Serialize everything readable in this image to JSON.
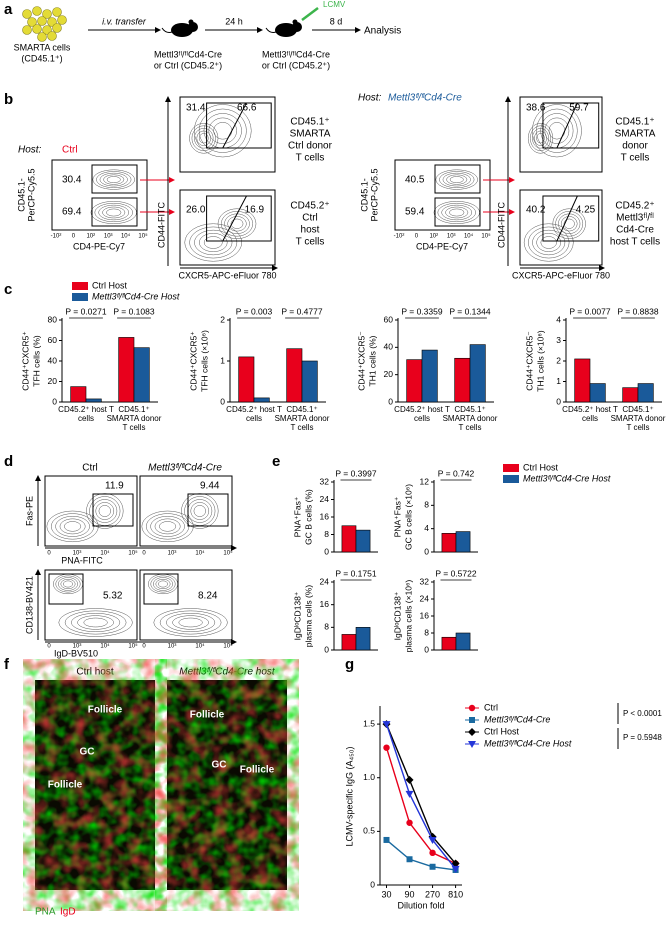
{
  "panels": {
    "a": {
      "label": "a",
      "cells": [
        "SMARTA cells",
        "(CD45.1⁺)"
      ],
      "transfer": "i.v. transfer",
      "recipient": [
        "Mettl3ᶠˡ/ᶠˡCd4-Cre",
        "or Ctrl (CD45.2⁺)"
      ],
      "wait": "24 h",
      "virus": "LCMV",
      "recipient2": [
        "Mettl3ᶠˡ/ᶠˡCd4-Cre",
        "or Ctrl (CD45.2⁺)"
      ],
      "period": "8 d",
      "endpoint": "Analysis"
    },
    "b": {
      "label": "b",
      "y_axis": [
        "CD45.1-",
        "PerCP-Cy5.5"
      ],
      "x_axis": "CD4-PE-Cy7",
      "y_axis2": "CD44-FITC",
      "x_axis2": "CXCR5-APC-eFluor 780",
      "flow_ticks": [
        "-10²",
        "0",
        "10²",
        "10³",
        "10⁴",
        "10⁵"
      ],
      "hosts": [
        {
          "prefix": "Host:",
          "name": "Ctrl",
          "gates": [
            "30.4",
            "69.4"
          ],
          "donor_gates": [
            "31.4",
            "66.6"
          ],
          "host_gates": [
            "26.0",
            "16.9"
          ],
          "donor_text": [
            "CD45.1⁺",
            "SMARTA",
            "Ctrl donor",
            "T cells"
          ],
          "host_text": [
            "CD45.2⁺",
            "Ctrl",
            "host",
            "T cells"
          ]
        },
        {
          "prefix": "Host:",
          "name": "Mettl3ᶠˡ/ᶠˡCd4-Cre",
          "gates": [
            "40.5",
            "59.4"
          ],
          "donor_gates": [
            "38.6",
            "59.7"
          ],
          "host_gates": [
            "40.2",
            "4.25"
          ],
          "donor_text": [
            "CD45.1⁺",
            "SMARTA",
            "donor",
            "T cells"
          ],
          "host_text": [
            "CD45.2⁺",
            "Mettl3ᶠˡ/ᶠˡ",
            "Cd4-Cre",
            "host T cells"
          ]
        }
      ]
    },
    "c": {
      "label": "c"
    },
    "d": {
      "label": "d",
      "titles": [
        "Ctrl",
        "Mettl3ᶠˡ/ᶠˡCd4-Cre"
      ],
      "gc_gates": [
        "11.9",
        "9.44"
      ],
      "pc_gates": [
        "5.32",
        "8.24"
      ],
      "axes": [
        "Fas-PE",
        "PNA-FITC",
        "CD138-BV421",
        "IgD-BV510"
      ],
      "flow_ticks": [
        "0",
        "10³",
        "10⁴",
        "10⁵"
      ]
    },
    "e": {
      "label": "e"
    },
    "f": {
      "label": "f",
      "titles": [
        "Ctrl host",
        "Mettl3ᶠˡ/ᶠˡCd4-Cre host"
      ],
      "regions": [
        [
          "Follicle",
          "GC",
          "Follicle"
        ],
        [
          "Follicle",
          "GC",
          "Follicle"
        ]
      ],
      "stains": [
        "PNA",
        "IgD"
      ]
    },
    "g": {
      "label": "g"
    }
  },
  "chart_data": [
    {
      "type": "bar",
      "ylabel": [
        "CD44⁺CXCR5⁺",
        "TFH cells (%)"
      ],
      "categories": [
        "CD45.2⁺ host T cells",
        "CD45.1⁺ SMARTA donor T cells"
      ],
      "series": [
        {
          "name": "Ctrl Host",
          "color": "#e8001c",
          "values": [
            15,
            63
          ]
        },
        {
          "name": "Mettl3ᶠˡ/ᶠˡCd4-Cre Host",
          "color": "#1a5a9a",
          "values": [
            3,
            53
          ]
        }
      ],
      "ylim": [
        0,
        80
      ],
      "yticks": [
        0,
        20,
        40,
        60,
        80
      ],
      "p_values": [
        "P = 0.0271",
        "P = 0.1083"
      ]
    },
    {
      "type": "bar",
      "ylabel": [
        "CD44⁺CXCR5⁺",
        "TFH cells (×10⁶)"
      ],
      "categories": [
        "CD45.2⁺ host T cells",
        "CD45.1⁺ SMARTA donor T cells"
      ],
      "series": [
        {
          "color": "#e8001c",
          "values": [
            1.1,
            1.3
          ]
        },
        {
          "color": "#1a5a9a",
          "values": [
            0.1,
            1.0
          ]
        }
      ],
      "ylim": [
        0,
        2
      ],
      "yticks": [
        0,
        1,
        2
      ],
      "p_values": [
        "P = 0.003",
        "P = 0.4777"
      ]
    },
    {
      "type": "bar",
      "ylabel": [
        "CD44⁺CXCR5⁻",
        "TH1 cells (%)"
      ],
      "categories": [
        "CD45.2⁺ host T cells",
        "CD45.1⁺ SMARTA donor T cells"
      ],
      "series": [
        {
          "color": "#e8001c",
          "values": [
            31,
            32
          ]
        },
        {
          "color": "#1a5a9a",
          "values": [
            38,
            42
          ]
        }
      ],
      "ylim": [
        0,
        60
      ],
      "yticks": [
        0,
        20,
        40,
        60
      ],
      "p_values": [
        "P = 0.3359",
        "P = 0.1344"
      ]
    },
    {
      "type": "bar",
      "ylabel": [
        "CD44⁺CXCR5⁻",
        "TH1 cells (×10⁶)"
      ],
      "categories": [
        "CD45.2⁺ host T cells",
        "CD45.1⁺ SMARTA donor T cells"
      ],
      "series": [
        {
          "color": "#e8001c",
          "values": [
            2.1,
            0.7
          ]
        },
        {
          "color": "#1a5a9a",
          "values": [
            0.9,
            0.9
          ]
        }
      ],
      "ylim": [
        0,
        4
      ],
      "yticks": [
        0,
        1,
        2,
        3,
        4
      ],
      "p_values": [
        "P = 0.0077",
        "P = 0.8838"
      ]
    },
    {
      "type": "bar",
      "ylabel": [
        "PNA⁺Fas⁺",
        "GC B cells (%)"
      ],
      "series": [
        {
          "name": "Ctrl Host",
          "color": "#e8001c",
          "values": [
            12
          ]
        },
        {
          "name": "Mettl3ᶠˡ/ᶠˡCd4-Cre Host",
          "color": "#1a5a9a",
          "values": [
            10
          ]
        }
      ],
      "ylim": [
        0,
        32
      ],
      "yticks": [
        0,
        8,
        16,
        24,
        32
      ],
      "p_values": [
        "P = 0.3997"
      ]
    },
    {
      "type": "bar",
      "ylabel": [
        "PNA⁺Fas⁺",
        "GC B cells (×10⁶)"
      ],
      "series": [
        {
          "color": "#e8001c",
          "values": [
            3.2
          ]
        },
        {
          "color": "#1a5a9a",
          "values": [
            3.5
          ]
        }
      ],
      "ylim": [
        0,
        12
      ],
      "yticks": [
        0,
        4,
        8,
        12
      ],
      "p_values": [
        "P = 0.742"
      ]
    },
    {
      "type": "bar",
      "ylabel": [
        "IgDˡᵒCD138⁺",
        "plasma cells (%)"
      ],
      "series": [
        {
          "color": "#e8001c",
          "values": [
            5.5
          ]
        },
        {
          "color": "#1a5a9a",
          "values": [
            8
          ]
        }
      ],
      "ylim": [
        0,
        24
      ],
      "yticks": [
        0,
        8,
        16,
        24
      ],
      "p_values": [
        "P = 0.1751"
      ]
    },
    {
      "type": "bar",
      "ylabel": [
        "IgDˡᵒCD138⁺",
        "plasma cells (×10⁶)"
      ],
      "series": [
        {
          "color": "#e8001c",
          "values": [
            6
          ]
        },
        {
          "color": "#1a5a9a",
          "values": [
            8
          ]
        }
      ],
      "ylim": [
        0,
        32
      ],
      "yticks": [
        0,
        8,
        16,
        24,
        32
      ],
      "p_values": [
        "P = 0.5722"
      ]
    },
    {
      "type": "line",
      "ylabel": "LCMV-specific IgG (A₄₅₀)",
      "xlabel": "Dilution fold",
      "x": [
        30,
        90,
        270,
        810
      ],
      "xscale": "log",
      "xlim": [
        22,
        1100
      ],
      "xticks": [
        30,
        90,
        270,
        810
      ],
      "ylim": [
        0,
        1.65
      ],
      "yticks": [
        0,
        0.5,
        {
          "value": 1,
          "label": "1.0"
        },
        1.5
      ],
      "series": [
        {
          "name": "Ctrl",
          "color": "#e8001c",
          "marker": "circle",
          "values": [
            1.28,
            0.58,
            0.3,
            0.2
          ]
        },
        {
          "name": "Mettl3ᶠˡ/ᶠˡCd4-Cre",
          "color": "#1a6aa0",
          "marker": "square",
          "values": [
            0.42,
            0.24,
            0.17,
            0.14
          ]
        },
        {
          "name": "Ctrl Host",
          "color": "#000000",
          "marker": "diamond",
          "values": [
            1.5,
            0.98,
            0.45,
            0.2
          ]
        },
        {
          "name": "Mettl3ᶠˡ/ᶠˡCd4-Cre Host",
          "color": "#2436d8",
          "marker": "triangle-down",
          "values": [
            1.5,
            0.85,
            0.42,
            0.15
          ]
        }
      ],
      "annotations": [
        "P < 0.0001",
        "P = 0.5948"
      ]
    }
  ]
}
